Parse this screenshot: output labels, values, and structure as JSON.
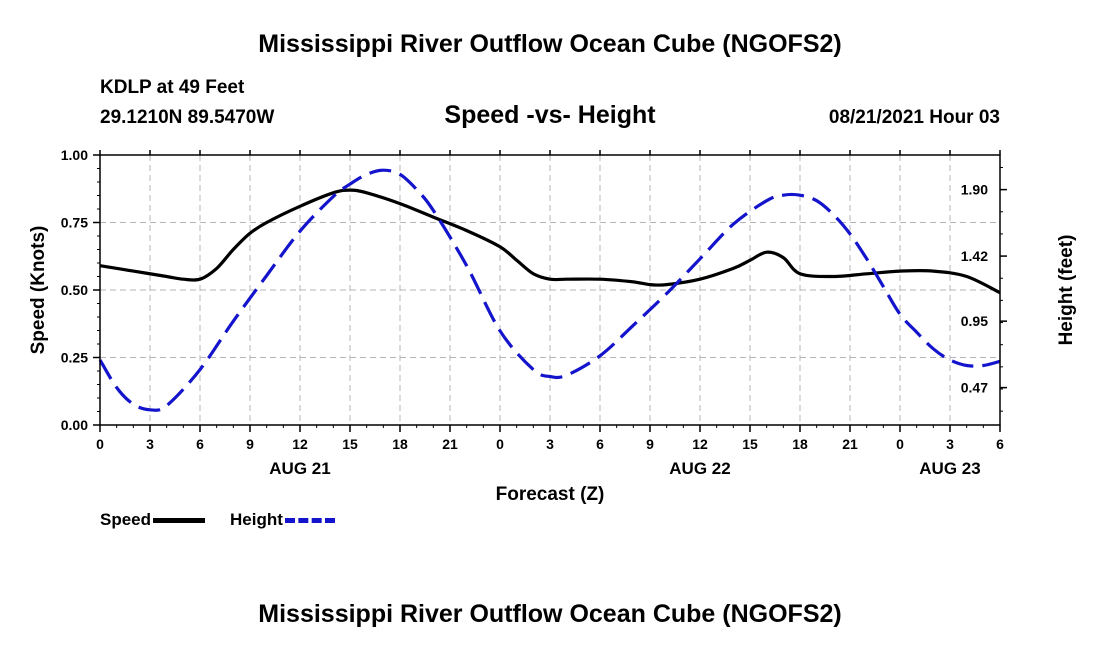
{
  "header": {
    "title": "Mississippi River Outflow Ocean Cube (NGOFS2)",
    "station": "KDLP at 49 Feet",
    "coords": "29.1210N  89.5470W",
    "subtitle": "Speed -vs- Height",
    "datetime": "08/21/2021 Hour 03"
  },
  "footer": {
    "title": "Mississippi River Outflow Ocean Cube (NGOFS2)"
  },
  "legend": {
    "speed_label": "Speed",
    "height_label": "Height"
  },
  "colors": {
    "speed": "#000000",
    "height": "#1414cc",
    "grid": "#b4b4b4"
  },
  "chart_data": {
    "type": "line",
    "title": "Speed -vs- Height",
    "xlabel": "Forecast (Z)",
    "ylabel": "Speed (Knots)",
    "y2label": "Height (feet)",
    "xlim": [
      0,
      54
    ],
    "ylim": [
      0,
      1.0
    ],
    "y2lim": [
      0.2,
      2.15
    ],
    "x_ticks": [
      0,
      3,
      6,
      9,
      12,
      15,
      18,
      21,
      24,
      27,
      30,
      33,
      36,
      39,
      42,
      45,
      48,
      51,
      54
    ],
    "x_tick_labels": [
      "0",
      "3",
      "6",
      "9",
      "12",
      "15",
      "18",
      "21",
      "0",
      "3",
      "6",
      "9",
      "12",
      "15",
      "18",
      "21",
      "0",
      "3",
      "6"
    ],
    "date_labels": [
      {
        "x": 12,
        "label": "AUG 21"
      },
      {
        "x": 36,
        "label": "AUG 22"
      },
      {
        "x": 51,
        "label": "AUG 23"
      }
    ],
    "y_ticks": [
      0,
      0.25,
      0.5,
      0.75,
      1.0
    ],
    "y_tick_labels": [
      "0.00",
      "0.25",
      "0.50",
      "0.75",
      "1.00"
    ],
    "y2_ticks": [
      0.47,
      0.95,
      1.42,
      1.9
    ],
    "y2_tick_labels": [
      "0.47",
      "0.95",
      "1.42",
      "1.90"
    ],
    "grid": true,
    "series": [
      {
        "name": "Speed",
        "axis": "left",
        "style": "solid",
        "x": [
          0,
          2,
          4,
          5,
          6,
          7,
          8,
          9,
          10,
          12,
          14,
          15,
          16,
          18,
          20,
          22,
          24,
          25,
          26,
          27,
          28,
          30,
          32,
          33,
          34,
          36,
          38,
          39,
          40,
          41,
          42,
          44,
          46,
          48,
          50,
          52,
          54
        ],
        "values": [
          0.59,
          0.57,
          0.55,
          0.54,
          0.54,
          0.58,
          0.65,
          0.71,
          0.75,
          0.81,
          0.86,
          0.87,
          0.86,
          0.82,
          0.77,
          0.72,
          0.66,
          0.61,
          0.56,
          0.54,
          0.54,
          0.54,
          0.53,
          0.52,
          0.52,
          0.54,
          0.58,
          0.61,
          0.64,
          0.62,
          0.56,
          0.55,
          0.56,
          0.57,
          0.57,
          0.55,
          0.49
        ]
      },
      {
        "name": "Height",
        "axis": "right",
        "style": "dashed",
        "x": [
          0,
          1,
          2,
          3,
          4,
          6,
          8,
          10,
          12,
          14,
          15,
          16,
          17,
          18,
          19,
          20,
          22,
          24,
          26,
          27,
          28,
          30,
          32,
          34,
          36,
          38,
          40,
          41,
          42,
          43,
          44,
          45,
          46,
          47,
          48,
          49,
          50,
          51,
          52,
          53,
          54
        ],
        "values": [
          0.67,
          0.47,
          0.35,
          0.31,
          0.34,
          0.6,
          0.95,
          1.28,
          1.6,
          1.85,
          1.94,
          2.01,
          2.04,
          2.01,
          1.9,
          1.75,
          1.35,
          0.88,
          0.6,
          0.55,
          0.56,
          0.7,
          0.92,
          1.15,
          1.4,
          1.65,
          1.82,
          1.86,
          1.86,
          1.82,
          1.72,
          1.58,
          1.4,
          1.2,
          1.0,
          0.87,
          0.75,
          0.67,
          0.63,
          0.63,
          0.66
        ]
      }
    ]
  }
}
